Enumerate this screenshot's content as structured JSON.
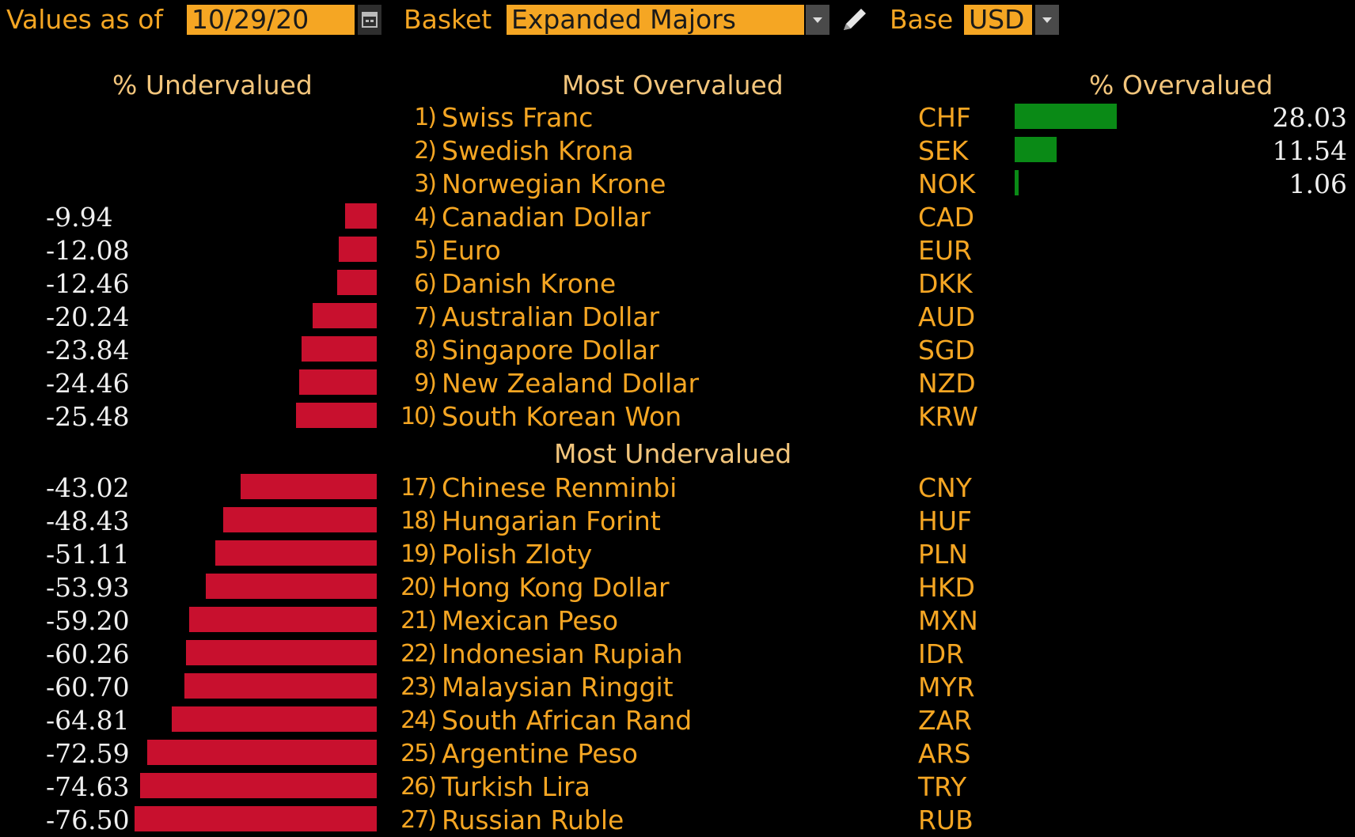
{
  "toolbar": {
    "values_label": "Values as of",
    "date": "10/29/20",
    "basket_label": "Basket",
    "basket": "Expanded Majors",
    "base_label": "Base",
    "base": "USD"
  },
  "headers": {
    "undervalued": "% Undervalued",
    "most_overvalued": "Most Overvalued",
    "overvalued": "% Overvalued",
    "most_undervalued": "Most Undervalued"
  },
  "overvalued_rows": [
    {
      "rank": "1)",
      "name": "Swiss Franc",
      "code": "CHF",
      "value": 28.03,
      "label": "28.03"
    },
    {
      "rank": "2)",
      "name": "Swedish Krona",
      "code": "SEK",
      "value": 11.54,
      "label": "11.54"
    },
    {
      "rank": "3)",
      "name": "Norwegian Krone",
      "code": "NOK",
      "value": 1.06,
      "label": "1.06"
    },
    {
      "rank": "4)",
      "name": "Canadian Dollar",
      "code": "CAD",
      "value": -9.94,
      "label": "-9.94"
    },
    {
      "rank": "5)",
      "name": "Euro",
      "code": "EUR",
      "value": -12.08,
      "label": "-12.08"
    },
    {
      "rank": "6)",
      "name": "Danish Krone",
      "code": "DKK",
      "value": -12.46,
      "label": "-12.46"
    },
    {
      "rank": "7)",
      "name": "Australian Dollar",
      "code": "AUD",
      "value": -20.24,
      "label": "-20.24"
    },
    {
      "rank": "8)",
      "name": "Singapore Dollar",
      "code": "SGD",
      "value": -23.84,
      "label": "-23.84"
    },
    {
      "rank": "9)",
      "name": "New Zealand Dollar",
      "code": "NZD",
      "value": -24.46,
      "label": "-24.46"
    },
    {
      "rank": "10)",
      "name": "South Korean Won",
      "code": "KRW",
      "value": -25.48,
      "label": "-25.48"
    }
  ],
  "undervalued_rows": [
    {
      "rank": "17)",
      "name": "Chinese Renminbi",
      "code": "CNY",
      "value": -43.02,
      "label": "-43.02"
    },
    {
      "rank": "18)",
      "name": "Hungarian Forint",
      "code": "HUF",
      "value": -48.43,
      "label": "-48.43"
    },
    {
      "rank": "19)",
      "name": "Polish Zloty",
      "code": "PLN",
      "value": -51.11,
      "label": "-51.11"
    },
    {
      "rank": "20)",
      "name": "Hong Kong Dollar",
      "code": "HKD",
      "value": -53.93,
      "label": "-53.93"
    },
    {
      "rank": "21)",
      "name": "Mexican Peso",
      "code": "MXN",
      "value": -59.2,
      "label": "-59.20"
    },
    {
      "rank": "22)",
      "name": "Indonesian Rupiah",
      "code": "IDR",
      "value": -60.26,
      "label": "-60.26"
    },
    {
      "rank": "23)",
      "name": "Malaysian Ringgit",
      "code": "MYR",
      "value": -60.7,
      "label": "-60.70"
    },
    {
      "rank": "24)",
      "name": "South African Rand",
      "code": "ZAR",
      "value": -64.81,
      "label": "-64.81"
    },
    {
      "rank": "25)",
      "name": "Argentine Peso",
      "code": "ARS",
      "value": -72.59,
      "label": "-72.59"
    },
    {
      "rank": "26)",
      "name": "Turkish Lira",
      "code": "TRY",
      "value": -74.63,
      "label": "-74.63"
    },
    {
      "rank": "27)",
      "name": "Russian Ruble",
      "code": "RUB",
      "value": -76.5,
      "label": "-76.50"
    }
  ],
  "colors": {
    "accent": "#f5a623",
    "header": "#f2c57c",
    "bar_negative": "#c8102e",
    "bar_positive": "#0a8a16",
    "value_text": "#f0f0f0"
  }
}
